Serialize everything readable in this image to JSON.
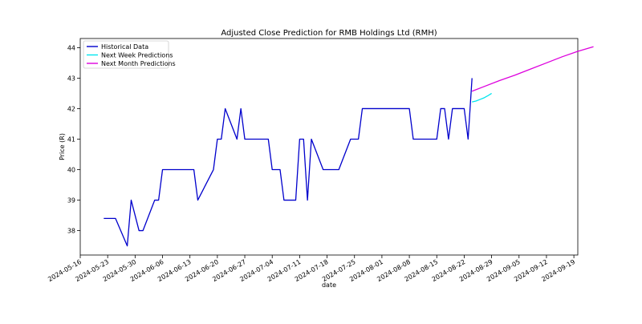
{
  "chart_data": {
    "type": "line",
    "title": "Adjusted Close Prediction for RMB Holdings Ltd (RMH)",
    "xlabel": "date",
    "ylabel": "Price (R)",
    "x_range": [
      "2024-05-16",
      "2024-09-20"
    ],
    "ylim": [
      37.2,
      44.3
    ],
    "grid": false,
    "legend_position": "top-left",
    "x_tick_labels": [
      "2024-05-16",
      "2024-05-23",
      "2024-05-30",
      "2024-06-06",
      "2024-06-13",
      "2024-06-20",
      "2024-06-27",
      "2024-07-04",
      "2024-07-11",
      "2024-07-18",
      "2024-07-25",
      "2024-08-01",
      "2024-08-08",
      "2024-08-15",
      "2024-08-22",
      "2024-08-29",
      "2024-09-05",
      "2024-09-12",
      "2024-09-19"
    ],
    "y_ticks": [
      38,
      39,
      40,
      41,
      42,
      43,
      44
    ],
    "series": [
      {
        "name": "Historical Data",
        "color": "#0000cc",
        "points": [
          [
            "2024-05-22",
            38.4
          ],
          [
            "2024-05-25",
            38.4
          ],
          [
            "2024-05-28",
            37.5
          ],
          [
            "2024-05-29",
            39.0
          ],
          [
            "2024-05-31",
            38.0
          ],
          [
            "2024-06-01",
            38.0
          ],
          [
            "2024-06-04",
            39.0
          ],
          [
            "2024-06-05",
            39.0
          ],
          [
            "2024-06-06",
            40.0
          ],
          [
            "2024-06-14",
            40.0
          ],
          [
            "2024-06-15",
            39.0
          ],
          [
            "2024-06-19",
            40.0
          ],
          [
            "2024-06-20",
            41.0
          ],
          [
            "2024-06-21",
            41.0
          ],
          [
            "2024-06-22",
            42.0
          ],
          [
            "2024-06-25",
            41.0
          ],
          [
            "2024-06-26",
            42.0
          ],
          [
            "2024-06-27",
            41.0
          ],
          [
            "2024-07-03",
            41.0
          ],
          [
            "2024-07-04",
            40.0
          ],
          [
            "2024-07-06",
            40.0
          ],
          [
            "2024-07-07",
            39.0
          ],
          [
            "2024-07-10",
            39.0
          ],
          [
            "2024-07-11",
            41.0
          ],
          [
            "2024-07-12",
            41.0
          ],
          [
            "2024-07-13",
            39.0
          ],
          [
            "2024-07-14",
            41.0
          ],
          [
            "2024-07-17",
            40.0
          ],
          [
            "2024-07-21",
            40.0
          ],
          [
            "2024-07-24",
            41.0
          ],
          [
            "2024-07-26",
            41.0
          ],
          [
            "2024-07-27",
            42.0
          ],
          [
            "2024-08-08",
            42.0
          ],
          [
            "2024-08-09",
            41.0
          ],
          [
            "2024-08-15",
            41.0
          ],
          [
            "2024-08-16",
            42.0
          ],
          [
            "2024-08-17",
            42.0
          ],
          [
            "2024-08-18",
            41.0
          ],
          [
            "2024-08-19",
            42.0
          ],
          [
            "2024-08-22",
            42.0
          ],
          [
            "2024-08-23",
            41.0
          ],
          [
            "2024-08-24",
            43.0
          ]
        ]
      },
      {
        "name": "Next Week Predictions",
        "color": "#00e5ee",
        "points": [
          [
            "2024-08-24",
            42.22
          ],
          [
            "2024-08-25",
            42.25
          ],
          [
            "2024-08-26",
            42.3
          ],
          [
            "2024-08-27",
            42.35
          ],
          [
            "2024-08-28",
            42.42
          ],
          [
            "2024-08-29",
            42.5
          ]
        ]
      },
      {
        "name": "Next Month Predictions",
        "color": "#dd00dd",
        "points": [
          [
            "2024-08-24",
            42.57
          ],
          [
            "2024-08-27",
            42.72
          ],
          [
            "2024-08-31",
            42.92
          ],
          [
            "2024-09-04",
            43.1
          ],
          [
            "2024-09-08",
            43.3
          ],
          [
            "2024-09-12",
            43.5
          ],
          [
            "2024-09-16",
            43.7
          ],
          [
            "2024-09-20",
            43.88
          ],
          [
            "2024-09-24",
            44.03
          ]
        ]
      }
    ]
  }
}
